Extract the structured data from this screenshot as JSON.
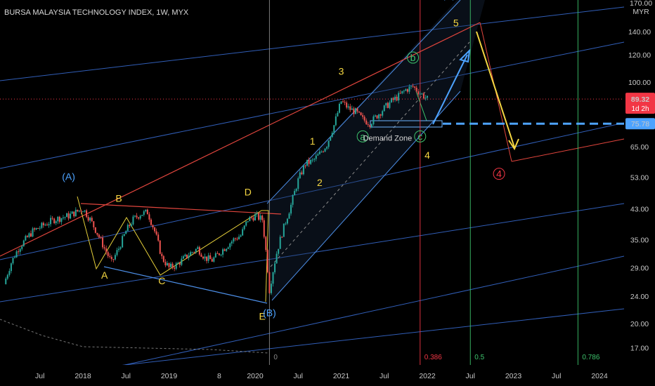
{
  "chart_data": {
    "type": "candlestick",
    "title": "BURSA MALAYSIA TECHNOLOGY INDEX, 1W, MYX",
    "currency": "MYR",
    "y_scale": "log",
    "ylim": [
      15.5,
      185
    ],
    "y_ticks": [
      17,
      20,
      24,
      29,
      35,
      43,
      53,
      65,
      120,
      140
    ],
    "y_tick_labels": [
      "17.00",
      "20.00",
      "24.00",
      "29.00",
      "35.00",
      "43.00",
      "53.00",
      "65.00",
      "120.00",
      "140.00"
    ],
    "y_tick_top": {
      "value": 100,
      "label": "100.00"
    },
    "y_partial": "170.00",
    "x_range": [
      "2017-02",
      "2024-05"
    ],
    "x_ticks": [
      {
        "date": "2017-07",
        "label": "Jul"
      },
      {
        "date": "2018-01",
        "label": "2018"
      },
      {
        "date": "2018-07",
        "label": "Jul"
      },
      {
        "date": "2019-01",
        "label": "2019"
      },
      {
        "date": "2019-08",
        "label": "8"
      },
      {
        "date": "2020-01",
        "label": "2020"
      },
      {
        "date": "2020-07",
        "label": "Jul"
      },
      {
        "date": "2021-01",
        "label": "2021"
      },
      {
        "date": "2021-07",
        "label": "Jul"
      },
      {
        "date": "2022-01",
        "label": "2022"
      },
      {
        "date": "2022-07",
        "label": "Jul"
      },
      {
        "date": "2023-01",
        "label": "2023"
      },
      {
        "date": "2023-07",
        "label": "Jul"
      },
      {
        "date": "2024-01",
        "label": "2024"
      }
    ],
    "price_path": [
      [
        "2017-02",
        26
      ],
      [
        "2017-03",
        30
      ],
      [
        "2017-04",
        33
      ],
      [
        "2017-06",
        37
      ],
      [
        "2017-07",
        38
      ],
      [
        "2017-09",
        40
      ],
      [
        "2017-11",
        41
      ],
      [
        "2017-12",
        42
      ],
      [
        "2018-01",
        43
      ],
      [
        "2018-02",
        40
      ],
      [
        "2018-04",
        33
      ],
      [
        "2018-05",
        30
      ],
      [
        "2018-06",
        33
      ],
      [
        "2018-07",
        37
      ],
      [
        "2018-08",
        40
      ],
      [
        "2018-09",
        41.5
      ],
      [
        "2018-10",
        42
      ],
      [
        "2018-11",
        37
      ],
      [
        "2018-12",
        31
      ],
      [
        "2019-01",
        29
      ],
      [
        "2019-02",
        29.5
      ],
      [
        "2019-04",
        32
      ],
      [
        "2019-05",
        33
      ],
      [
        "2019-06",
        31
      ],
      [
        "2019-07",
        30.5
      ],
      [
        "2019-08",
        32
      ],
      [
        "2019-10",
        35
      ],
      [
        "2019-11",
        36
      ],
      [
        "2019-12",
        40
      ],
      [
        "2020-01",
        41
      ],
      [
        "2020-02",
        40
      ],
      [
        "2020-03",
        25
      ],
      [
        "2020-04",
        32
      ],
      [
        "2020-05",
        38
      ],
      [
        "2020-06",
        44
      ],
      [
        "2020-07",
        52
      ],
      [
        "2020-08",
        58
      ],
      [
        "2020-09",
        59
      ],
      [
        "2020-10",
        62
      ],
      [
        "2020-11",
        66
      ],
      [
        "2020-12",
        75
      ],
      [
        "2021-01",
        88
      ],
      [
        "2021-02",
        84
      ],
      [
        "2021-03",
        82
      ],
      [
        "2021-04",
        78
      ],
      [
        "2021-05",
        76
      ],
      [
        "2021-06",
        80
      ],
      [
        "2021-07",
        84
      ],
      [
        "2021-08",
        88
      ],
      [
        "2021-09",
        91
      ],
      [
        "2021-10",
        95
      ],
      [
        "2021-11",
        97
      ],
      [
        "2021-12",
        93
      ],
      [
        "2022-01",
        89.32
      ]
    ],
    "last_price": {
      "value": 89.32,
      "label": "89.32",
      "countdown": "1d 2h",
      "color": "#f23645"
    },
    "demand_level": {
      "value": 75.78,
      "label": "75.78",
      "color": "#4da3ff"
    },
    "wave_labels": [
      {
        "text": "(A)",
        "date": "2017-11",
        "price": 52,
        "color": "#4da3ff"
      },
      {
        "text": "A",
        "date": "2018-04",
        "price": 27,
        "color": "#f5d742"
      },
      {
        "text": "B",
        "date": "2018-06",
        "price": 45,
        "color": "#f5d742"
      },
      {
        "text": "C",
        "date": "2019-00",
        "price": 26,
        "color": "#f5d742"
      },
      {
        "text": "D",
        "date": "2019-12",
        "price": 47,
        "color": "#f5d742"
      },
      {
        "text": "E",
        "date": "2020-02",
        "price": 20.5,
        "color": "#f5d742"
      },
      {
        "text": "(B)",
        "date": "2020-03",
        "price": 21,
        "color": "#4da3ff"
      },
      {
        "text": "1",
        "date": "2020-09",
        "price": 66,
        "color": "#f5d742"
      },
      {
        "text": "2",
        "date": "2020-10",
        "price": 50,
        "color": "#f5d742"
      },
      {
        "text": "3",
        "date": "2021-01",
        "price": 105,
        "color": "#f5d742"
      },
      {
        "text": "a",
        "date": "2021-04",
        "price": 68,
        "color": "#3ec46d"
      },
      {
        "text": "b",
        "date": "2021-11",
        "price": 115,
        "color": "#3ec46d"
      },
      {
        "text": "c",
        "date": "2022-00",
        "price": 68,
        "color": "#3ec46d"
      },
      {
        "text": "4",
        "date": "2022-01",
        "price": 60,
        "color": "#f5d742"
      },
      {
        "text": "5",
        "date": "2022-05",
        "price": 145,
        "color": "#f5d742"
      },
      {
        "text": "(C)",
        "date": "2022-04",
        "price": 175,
        "color": "#4da3ff"
      },
      {
        "text": "3",
        "date": "2022-05",
        "price": 178,
        "color": "#f23645"
      },
      {
        "text": "4",
        "date": "2022-11",
        "price": 53,
        "color": "#f23645"
      }
    ],
    "annotation": {
      "text": "Demand Zone",
      "date": "2021-06",
      "price": 69
    },
    "fib_lines": [
      {
        "date": "2020-03",
        "label": "0",
        "color": "#8a8a8a"
      },
      {
        "date": "2022-00",
        "label": "0.386",
        "color": "#f23645"
      },
      {
        "date": "2022-07",
        "label": "0.5",
        "color": "#3ec46d"
      },
      {
        "date": "2023-10",
        "label": "0.786",
        "color": "#3ec46d"
      }
    ],
    "legend": "none",
    "grid": false
  }
}
